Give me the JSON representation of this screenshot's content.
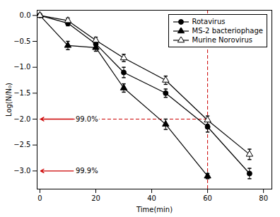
{
  "chart_data": {
    "type": "line",
    "xlabel": "Time(min)",
    "ylabel": "Log(N/N₀)",
    "xlim": [
      -1,
      83
    ],
    "ylim": [
      -3.35,
      0.1
    ],
    "xticks": [
      0,
      20,
      40,
      60,
      80
    ],
    "yticks": [
      {
        "value": 0.0,
        "label": "0.0"
      },
      {
        "value": -0.5,
        "label": "−0.5"
      },
      {
        "value": -1.0,
        "label": "−1.0"
      },
      {
        "value": -1.5,
        "label": "−1.5"
      },
      {
        "value": -2.0,
        "label": "−2.0"
      },
      {
        "value": -2.5,
        "label": "−2.5"
      },
      {
        "value": -3.0,
        "label": "−3.0"
      }
    ],
    "legend": "upper right",
    "series": [
      {
        "name": "Rotavirus",
        "color": "black",
        "marker": "circle",
        "line_style": "solid",
        "x": [
          0,
          10,
          20,
          30,
          45,
          60,
          75
        ],
        "values": [
          0,
          -0.15,
          -0.55,
          -1.1,
          -1.5,
          -2.15,
          -3.05
        ],
        "yerr": [
          0,
          0.05,
          0.08,
          0.1,
          0.08,
          0.1,
          0.1
        ]
      },
      {
        "name": "MS-2 bacteriophage",
        "color": "black",
        "marker": "triangle",
        "line_style": "solid",
        "x": [
          0,
          10,
          20,
          30,
          45,
          60
        ],
        "values": [
          0,
          -0.58,
          -0.62,
          -1.4,
          -2.1,
          -3.1
        ],
        "yerr": [
          0,
          0.08,
          0.07,
          0.08,
          0.1,
          0.05
        ]
      },
      {
        "name": "Murine Norovirus",
        "color": "black",
        "marker": "triangle_open",
        "line_style": "solid",
        "x": [
          0,
          10,
          20,
          30,
          45,
          60,
          75
        ],
        "values": [
          0,
          -0.1,
          -0.48,
          -0.82,
          -1.25,
          -2.02,
          -2.68
        ],
        "yerr": [
          0,
          0.05,
          0.06,
          0.07,
          0.08,
          0.08,
          0.1
        ]
      }
    ],
    "hlines": [
      {
        "y": -2.0,
        "x": [
          0,
          60
        ],
        "color": "#cc0000",
        "line_style": "dashed"
      }
    ],
    "vlines": [
      {
        "x": 60,
        "color": "#cc0000",
        "line_style": "dashed"
      }
    ],
    "annotations": [
      {
        "text": "99.0%",
        "x": 0,
        "y": -2.0,
        "text_x": 12,
        "color": "#cc0000"
      },
      {
        "text": "99.9%",
        "x": 0,
        "y": -3.0,
        "text_x": 12,
        "color": "#cc0000"
      }
    ]
  }
}
